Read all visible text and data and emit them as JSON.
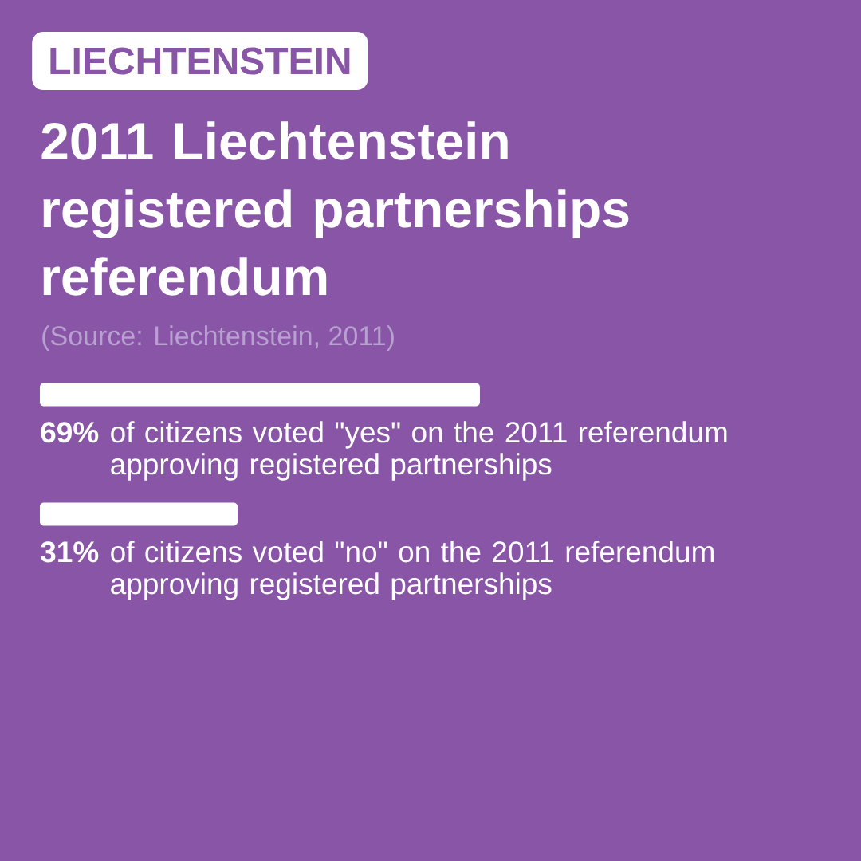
{
  "chart_data": {
    "type": "bar",
    "orientation": "horizontal",
    "title": "2011 Liechtenstein registered partnerships referendum",
    "annotations": [
      "LIECHTENSTEIN",
      "(Source: Liechtenstein, 2011)"
    ],
    "categories": [
      "of citizens voted \"yes\" on the 2011 referendum approving registered partnerships",
      "of citizens voted \"no\" on the 2011 referendum approving registered partnerships"
    ],
    "values": [
      69,
      31
    ],
    "value_labels": [
      "69%",
      "31%"
    ],
    "color": "#ffffff",
    "tick_labels": "y"
  }
}
